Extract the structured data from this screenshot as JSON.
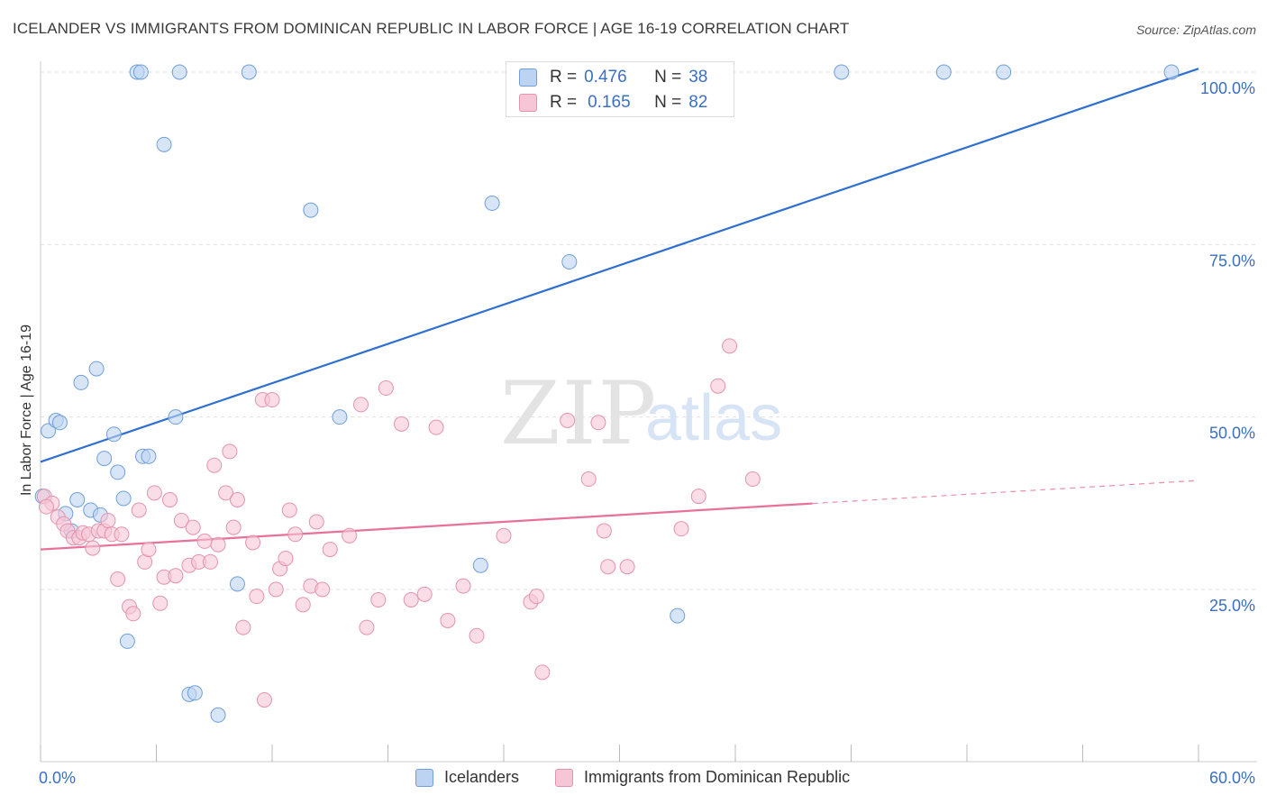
{
  "title": "ICELANDER VS IMMIGRANTS FROM DOMINICAN REPUBLIC IN LABOR FORCE | AGE 16-19 CORRELATION CHART",
  "source": "Source: ZipAtlas.com",
  "watermark": {
    "zip": "ZIP",
    "atlas": "atlas"
  },
  "correlation_legend": {
    "rows": [
      {
        "r_label": "R =",
        "r_value": "0.476",
        "n_label": "N =",
        "n_value": "38"
      },
      {
        "r_label": "R =",
        "r_value": "0.165",
        "n_label": "N =",
        "n_value": "82"
      }
    ]
  },
  "colors": {
    "blue_fill": "#bcd4f2",
    "blue_stroke": "#6f9fdb",
    "blue_line": "#2e6fd0",
    "pink_fill": "#f7c6d6",
    "pink_stroke": "#e593ad",
    "pink_line": "#e8709a",
    "tick_label": "#3a6fc4",
    "grid": "#e0e0e0"
  },
  "chart_data": {
    "type": "scatter",
    "title": "ICELANDER VS IMMIGRANTS FROM DOMINICAN REPUBLIC IN LABOR FORCE | AGE 16-19 CORRELATION CHART",
    "xlabel": "",
    "ylabel": "In Labor Force | Age 16-19",
    "xlim": [
      0,
      60
    ],
    "ylim": [
      0,
      105
    ],
    "x_tick_labels": [
      "0.0%",
      "60.0%"
    ],
    "y_ticks": [
      25,
      50,
      75,
      100
    ],
    "y_tick_labels": [
      "25.0%",
      "50.0%",
      "75.0%",
      "100.0%"
    ],
    "grid": true,
    "legend_position": "bottom",
    "series": [
      {
        "name": "Icelanders",
        "r": 0.476,
        "n": 38,
        "trend": {
          "x0": 0,
          "y0": 43.5,
          "x1": 60,
          "y1": 100.5,
          "dashed_from": null
        },
        "points": [
          [
            0.1,
            38.5
          ],
          [
            0.4,
            48.0
          ],
          [
            0.8,
            49.5
          ],
          [
            1.0,
            49.2
          ],
          [
            1.3,
            36.0
          ],
          [
            1.6,
            33.5
          ],
          [
            1.9,
            38.0
          ],
          [
            2.1,
            55.0
          ],
          [
            2.6,
            36.5
          ],
          [
            2.9,
            57.0
          ],
          [
            3.3,
            44.0
          ],
          [
            3.8,
            47.5
          ],
          [
            4.0,
            42.0
          ],
          [
            4.3,
            38.2
          ],
          [
            4.5,
            17.5
          ],
          [
            3.1,
            35.8
          ],
          [
            5.3,
            44.3
          ],
          [
            5.6,
            44.3
          ],
          [
            5.0,
            100.0
          ],
          [
            5.2,
            100.0
          ],
          [
            7.2,
            100.0
          ],
          [
            10.8,
            100.0
          ],
          [
            6.4,
            89.5
          ],
          [
            14.0,
            80.0
          ],
          [
            7.0,
            50.0
          ],
          [
            7.7,
            9.8
          ],
          [
            8.0,
            10.0
          ],
          [
            9.2,
            6.8
          ],
          [
            10.2,
            25.8
          ],
          [
            15.5,
            50.0
          ],
          [
            22.8,
            28.5
          ],
          [
            23.4,
            81.0
          ],
          [
            27.4,
            72.5
          ],
          [
            33.0,
            21.2
          ],
          [
            41.5,
            100.0
          ],
          [
            46.8,
            100.0
          ],
          [
            49.9,
            100.0
          ],
          [
            58.6,
            100.0
          ]
        ]
      },
      {
        "name": "Immigrants from Dominican Republic",
        "r": 0.165,
        "n": 82,
        "trend": {
          "x0": 0,
          "y0": 30.8,
          "x1": 60,
          "y1": 40.8,
          "dashed_from": 40
        },
        "points": [
          [
            0.2,
            38.5
          ],
          [
            0.6,
            37.5
          ],
          [
            0.9,
            35.5
          ],
          [
            1.2,
            34.5
          ],
          [
            1.4,
            33.5
          ],
          [
            1.7,
            32.5
          ],
          [
            2.0,
            32.5
          ],
          [
            2.2,
            33.2
          ],
          [
            2.5,
            33.0
          ],
          [
            2.7,
            31.0
          ],
          [
            3.0,
            33.5
          ],
          [
            3.3,
            33.5
          ],
          [
            3.5,
            35.0
          ],
          [
            3.7,
            33.0
          ],
          [
            4.0,
            26.5
          ],
          [
            4.2,
            33.0
          ],
          [
            4.6,
            22.5
          ],
          [
            4.8,
            21.5
          ],
          [
            5.1,
            36.5
          ],
          [
            5.4,
            29.0
          ],
          [
            5.6,
            30.8
          ],
          [
            5.9,
            39.0
          ],
          [
            6.2,
            23.0
          ],
          [
            6.4,
            26.8
          ],
          [
            6.7,
            38.0
          ],
          [
            7.0,
            27.0
          ],
          [
            7.3,
            35.0
          ],
          [
            7.7,
            28.5
          ],
          [
            7.9,
            34.0
          ],
          [
            8.2,
            29.0
          ],
          [
            8.5,
            32.0
          ],
          [
            8.8,
            29.0
          ],
          [
            9.0,
            43.0
          ],
          [
            9.2,
            31.5
          ],
          [
            9.6,
            39.0
          ],
          [
            9.8,
            45.0
          ],
          [
            10.0,
            34.0
          ],
          [
            10.2,
            38.0
          ],
          [
            10.5,
            19.5
          ],
          [
            11.0,
            31.8
          ],
          [
            11.2,
            24.0
          ],
          [
            11.5,
            52.5
          ],
          [
            11.6,
            9.0
          ],
          [
            12.0,
            52.5
          ],
          [
            12.2,
            25.0
          ],
          [
            12.4,
            28.0
          ],
          [
            12.7,
            29.5
          ],
          [
            12.9,
            36.5
          ],
          [
            13.2,
            33.0
          ],
          [
            13.6,
            22.8
          ],
          [
            14.0,
            25.5
          ],
          [
            14.3,
            34.8
          ],
          [
            14.6,
            25.0
          ],
          [
            15.0,
            30.8
          ],
          [
            16.0,
            32.8
          ],
          [
            16.6,
            51.8
          ],
          [
            16.9,
            19.5
          ],
          [
            17.5,
            23.5
          ],
          [
            17.9,
            54.2
          ],
          [
            18.7,
            49.0
          ],
          [
            19.2,
            23.5
          ],
          [
            19.9,
            24.3
          ],
          [
            20.5,
            48.5
          ],
          [
            21.1,
            20.5
          ],
          [
            21.9,
            25.5
          ],
          [
            22.6,
            18.3
          ],
          [
            24.0,
            32.8
          ],
          [
            25.4,
            23.2
          ],
          [
            25.7,
            24.0
          ],
          [
            26.0,
            13.0
          ],
          [
            27.3,
            49.5
          ],
          [
            28.4,
            41.0
          ],
          [
            29.2,
            33.5
          ],
          [
            29.4,
            28.3
          ],
          [
            28.9,
            49.2
          ],
          [
            30.4,
            28.3
          ],
          [
            33.2,
            33.8
          ],
          [
            34.1,
            38.5
          ],
          [
            35.1,
            54.5
          ],
          [
            35.7,
            60.3
          ],
          [
            36.9,
            41.0
          ],
          [
            0.3,
            37.0
          ]
        ]
      }
    ]
  }
}
